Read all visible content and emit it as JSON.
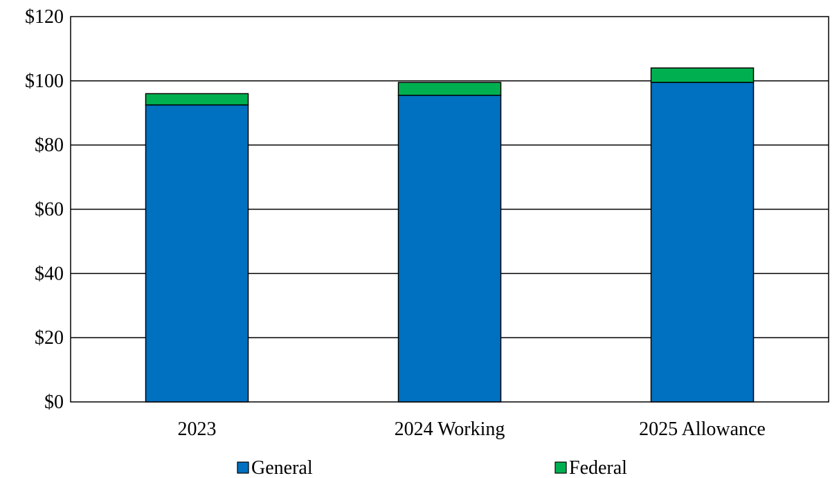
{
  "chart_data": {
    "type": "bar",
    "stacked": true,
    "categories": [
      "2023",
      "2024 Working",
      "2025 Allowance"
    ],
    "series": [
      {
        "name": "General",
        "values": [
          92.5,
          95.5,
          99.5
        ],
        "color": "#0070C0"
      },
      {
        "name": "Federal",
        "values": [
          3.5,
          4.0,
          4.5
        ],
        "color": "#00B050"
      }
    ],
    "ylim": [
      0,
      120
    ],
    "yticks": [
      0,
      20,
      40,
      60,
      80,
      100,
      120
    ],
    "ytick_labels": [
      "$0",
      "$20",
      "$40",
      "$60",
      "$80",
      "$100",
      "$120"
    ],
    "grid": true,
    "legend_position": "bottom",
    "title": "",
    "xlabel": "",
    "ylabel": ""
  }
}
